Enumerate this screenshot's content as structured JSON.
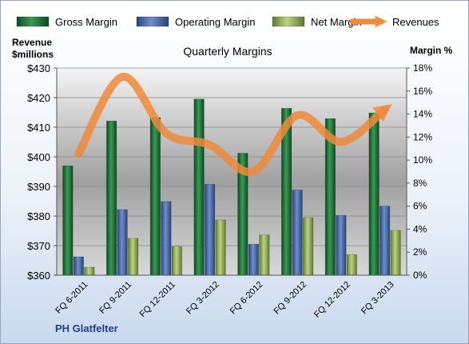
{
  "chart_data": {
    "type": "bar",
    "title": "Quarterly Margins",
    "categories": [
      "FQ 6-2011",
      "FQ 9-2011",
      "FQ 12-2011",
      "FQ 3-2012",
      "FQ 6-2012",
      "FQ 9-2012",
      "FQ 12-2012",
      "FQ 3-2013"
    ],
    "series": [
      {
        "name": "Gross Margin",
        "axis": "right",
        "color": "#1f7a3a",
        "values": [
          9.5,
          13.4,
          13.7,
          15.3,
          10.6,
          14.5,
          13.6,
          14.1
        ]
      },
      {
        "name": "Operating Margin",
        "axis": "right",
        "color": "#4a6fae",
        "values": [
          1.6,
          5.7,
          6.4,
          7.9,
          2.7,
          7.4,
          5.2,
          6.0
        ]
      },
      {
        "name": "Net Margin",
        "axis": "right",
        "color": "#9aba59",
        "values": [
          0.7,
          3.2,
          2.5,
          4.8,
          3.5,
          5.0,
          1.8,
          3.9
        ]
      },
      {
        "name": "Revenues",
        "type": "line",
        "axis": "left",
        "color": "#f0893b",
        "values": [
          401,
          427,
          408,
          404,
          395,
          414,
          405,
          416
        ]
      }
    ],
    "ylabel_left": "Revenue $millions",
    "ylabel_right": "Margin %",
    "ylim_left": [
      360,
      430
    ],
    "ylim_right": [
      0,
      18
    ],
    "yticks_left": [
      "$360",
      "$370",
      "$380",
      "$390",
      "$400",
      "$410",
      "$420",
      "$430"
    ],
    "yticks_right": [
      "0%",
      "2%",
      "4%",
      "6%",
      "8%",
      "10%",
      "12%",
      "14%",
      "16%",
      "18%"
    ],
    "legend_position": "top",
    "grid": true
  },
  "footer": {
    "company": "PH Glatfelter"
  }
}
